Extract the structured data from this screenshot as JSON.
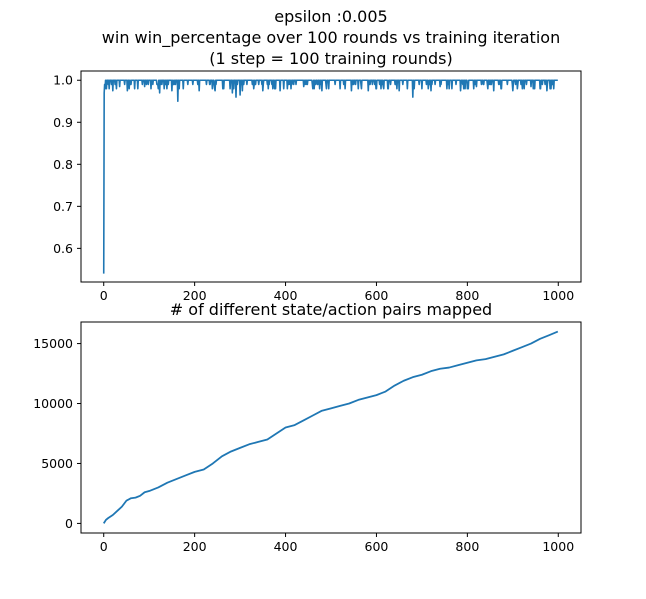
{
  "title_lines": [
    "epsilon :0.005",
    "win win_percentage over 100 rounds vs training iteration",
    "(1 step = 100 training rounds)"
  ],
  "chart_data": [
    {
      "type": "line",
      "title": "",
      "xlabel": "",
      "ylabel": "",
      "xlim": [
        -50,
        1050
      ],
      "ylim": [
        0.52,
        1.022
      ],
      "x_ticks": [
        0,
        200,
        400,
        600,
        800,
        1000
      ],
      "y_ticks": [
        0.6,
        0.7,
        0.8,
        0.9,
        1.0
      ],
      "x_tick_labels": [
        "0",
        "200",
        "400",
        "600",
        "800",
        "1000"
      ],
      "y_tick_labels": [
        "0.6",
        "0.7",
        "0.8",
        "0.9",
        "1.0"
      ],
      "color": "#1f77b4",
      "grid": false,
      "series": [
        {
          "x_start": 0,
          "x_end": 999,
          "n_points": 1000,
          "initial_points": [
            [
              0,
              0.54
            ],
            [
              1,
              0.97
            ],
            [
              2,
              0.99
            ],
            [
              3,
              0.98
            ]
          ],
          "typical_value": 1.0,
          "noise_values": [
            0.99,
            0.98
          ],
          "dips": [
            [
              12,
              0.98
            ],
            [
              20,
              0.975
            ],
            [
              35,
              0.985
            ],
            [
              52,
              0.975
            ],
            [
              68,
              0.98
            ],
            [
              90,
              0.985
            ],
            [
              120,
              0.98
            ],
            [
              123,
              0.97
            ],
            [
              150,
              0.975
            ],
            [
              163,
              0.95
            ],
            [
              175,
              0.98
            ],
            [
              210,
              0.975
            ],
            [
              245,
              0.975
            ],
            [
              262,
              0.98
            ],
            [
              283,
              0.97
            ],
            [
              291,
              0.96
            ],
            [
              300,
              0.965
            ],
            [
              305,
              0.975
            ],
            [
              330,
              0.98
            ],
            [
              350,
              0.975
            ],
            [
              372,
              0.98
            ],
            [
              388,
              0.975
            ],
            [
              412,
              0.98
            ],
            [
              440,
              0.985
            ],
            [
              463,
              0.98
            ],
            [
              480,
              0.975
            ],
            [
              495,
              0.98
            ],
            [
              520,
              0.98
            ],
            [
              545,
              0.975
            ],
            [
              560,
              0.98
            ],
            [
              582,
              0.975
            ],
            [
              600,
              0.98
            ],
            [
              615,
              0.985
            ],
            [
              650,
              0.975
            ],
            [
              668,
              0.98
            ],
            [
              680,
              0.96
            ],
            [
              700,
              0.98
            ],
            [
              720,
              0.975
            ],
            [
              740,
              0.985
            ],
            [
              760,
              0.98
            ],
            [
              785,
              0.975
            ],
            [
              800,
              0.98
            ],
            [
              820,
              0.985
            ],
            [
              845,
              0.98
            ],
            [
              858,
              0.975
            ],
            [
              875,
              0.98
            ],
            [
              900,
              0.975
            ],
            [
              921,
              0.98
            ],
            [
              940,
              0.985
            ],
            [
              960,
              0.98
            ],
            [
              975,
              0.975
            ],
            [
              990,
              0.98
            ]
          ]
        }
      ]
    },
    {
      "type": "line",
      "title": "# of different state/action pairs mapped",
      "xlabel": "",
      "ylabel": "",
      "xlim": [
        -50,
        1050
      ],
      "ylim": [
        -800,
        16800
      ],
      "x_ticks": [
        0,
        200,
        400,
        600,
        800,
        1000
      ],
      "y_ticks": [
        0,
        5000,
        10000,
        15000
      ],
      "x_tick_labels": [
        "0",
        "200",
        "400",
        "600",
        "800",
        "1000"
      ],
      "y_tick_labels": [
        "0",
        "5000",
        "10000",
        "15000"
      ],
      "color": "#1f77b4",
      "grid": false,
      "series": [
        {
          "x": [
            0,
            5,
            10,
            20,
            30,
            40,
            50,
            60,
            70,
            80,
            90,
            100,
            120,
            140,
            160,
            180,
            200,
            220,
            240,
            260,
            280,
            300,
            320,
            340,
            360,
            380,
            400,
            420,
            440,
            460,
            480,
            500,
            520,
            540,
            560,
            580,
            600,
            620,
            640,
            660,
            680,
            700,
            720,
            740,
            760,
            780,
            800,
            820,
            840,
            860,
            880,
            900,
            920,
            940,
            960,
            980,
            999
          ],
          "y": [
            0,
            300,
            450,
            700,
            1050,
            1400,
            1900,
            2100,
            2150,
            2300,
            2600,
            2700,
            3000,
            3400,
            3700,
            4000,
            4300,
            4500,
            5000,
            5600,
            6000,
            6300,
            6600,
            6800,
            7000,
            7500,
            8000,
            8200,
            8600,
            9000,
            9400,
            9600,
            9800,
            10000,
            10300,
            10500,
            10700,
            11000,
            11500,
            11900,
            12200,
            12400,
            12700,
            12900,
            13000,
            13200,
            13400,
            13600,
            13700,
            13900,
            14100,
            14400,
            14700,
            15000,
            15400,
            15700,
            16000
          ]
        }
      ]
    }
  ]
}
